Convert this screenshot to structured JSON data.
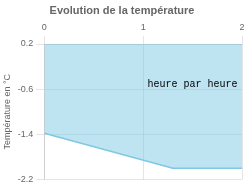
{
  "chart_data": {
    "type": "area",
    "title": "Evolution de la température",
    "y_label": "Température en °C",
    "x": [
      0,
      1.3,
      2
    ],
    "values": [
      -1.38,
      -2.0,
      -2.0
    ],
    "fill_to": 0.2,
    "color": "#7ec8e3",
    "xlim": [
      0,
      2
    ],
    "xticks": [
      0,
      1,
      2
    ],
    "ylim": [
      -2.2,
      0.2
    ],
    "yticks": [
      0.2,
      -0.6,
      -1.4,
      -2.2
    ],
    "grid": true,
    "annotations": [
      {
        "text": "heure par heure",
        "x": 1.5,
        "y": -0.52
      }
    ]
  }
}
